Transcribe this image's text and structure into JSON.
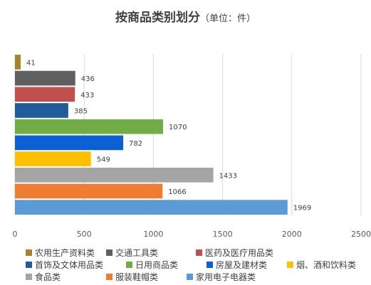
{
  "title": "按商品类别划分",
  "title_unit": "（单位：件）",
  "chart_data": {
    "type": "bar",
    "orientation": "horizontal",
    "categories": [
      "农用生产资料类",
      "交通工具类",
      "医药及医疗用品类",
      "首饰及文体用品类",
      "日用商品类",
      "房屋及建材类",
      "烟、酒和饮料类",
      "食品类",
      "服装鞋帽类",
      "家用电子电器类"
    ],
    "values": [
      41,
      436,
      433,
      385,
      1070,
      782,
      549,
      1433,
      1066,
      1969
    ],
    "colors": [
      "#A5852A",
      "#5F5F5F",
      "#C0504D",
      "#1F5C99",
      "#70AD47",
      "#0D5FD6",
      "#FFC000",
      "#A5A5A5",
      "#ED7D31",
      "#5B9BD5"
    ],
    "xlim": [
      0,
      2500
    ],
    "xticks": [
      0,
      500,
      1000,
      1500,
      2000,
      2500
    ],
    "grid": true,
    "legend_position": "bottom"
  }
}
